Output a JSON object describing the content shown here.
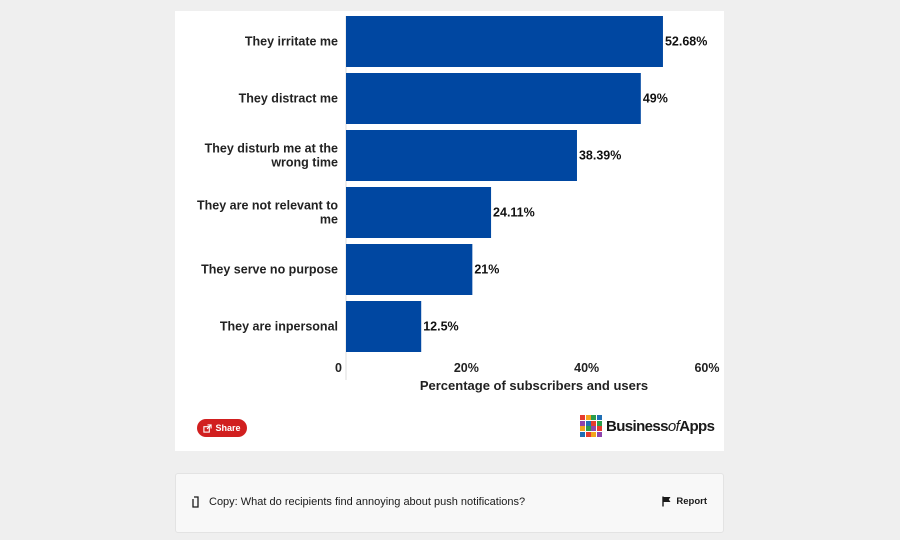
{
  "chart_data": {
    "type": "bar",
    "orientation": "horizontal",
    "categories": [
      "They irritate me",
      "They distract me",
      "They disturb me at the wrong time",
      "They are not relevant to me",
      "They serve no purpose",
      "They are inpersonal"
    ],
    "values": [
      52.68,
      49,
      38.39,
      24.11,
      21,
      12.5
    ],
    "value_labels": [
      "52.68%",
      "49%",
      "38.39%",
      "24.11%",
      "21%",
      "12.5%"
    ],
    "xlabel": "Percentage of subscribers and users",
    "ylabel": "",
    "xlim": [
      0,
      60
    ],
    "ticks": [
      0,
      20,
      40,
      60
    ],
    "tick_labels": [
      "0",
      "20%",
      "40%",
      "60%"
    ],
    "bar_color": "#0047a1",
    "grid": false
  },
  "share": {
    "label": "Share",
    "icon": "share-icon",
    "color": "#d11f1f"
  },
  "brand": {
    "prefix": "Business",
    "middle": "of",
    "suffix": "Apps",
    "logo_colors": [
      "#e63b2e",
      "#f3a51c",
      "#2a9d4a",
      "#1f6fb5",
      "#8e44ad",
      "#1f6fb5",
      "#e63b2e",
      "#2a9d4a",
      "#f3a51c",
      "#2a9d4a",
      "#8e44ad",
      "#e63b2e",
      "#1f6fb5",
      "#e63b2e",
      "#f3a51c",
      "#8e44ad"
    ]
  },
  "copy": {
    "text": "Copy: What do recipients find annoying about push notifications?",
    "icon": "copy-icon",
    "report_label": "Report",
    "report_icon": "flag-icon"
  }
}
